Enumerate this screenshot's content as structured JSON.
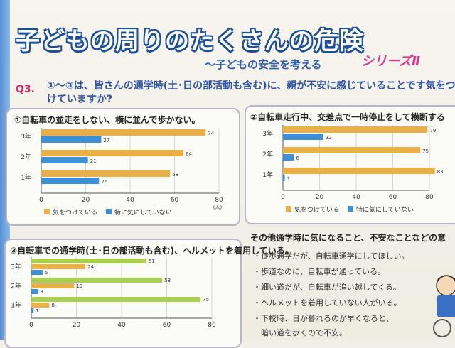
{
  "header": {
    "title": "子どもの周りのたくさんの危険",
    "subtitle": "〜子どもの安全を考える",
    "series": "シリーズⅡ"
  },
  "question": {
    "number": "Q3.",
    "text": "①〜③は、皆さんの通学時(土･日の部活動も含む)に、親が不安に感じていることです気をつけていますか?"
  },
  "chart_data": [
    {
      "type": "bar",
      "title": "①自転車の並走をしない、横に並んで歩かない。",
      "categories": [
        "3年",
        "2年",
        "1年"
      ],
      "series": [
        {
          "name": "気をつけている",
          "values": [
            74,
            64,
            58
          ],
          "color": "#e8b047"
        },
        {
          "name": "特に気にしていない",
          "values": [
            27,
            21,
            26
          ],
          "color": "#3d8fd6"
        }
      ],
      "xlim": [
        0,
        80
      ],
      "ticks": [
        0,
        20,
        40,
        60,
        80
      ],
      "unit": "(人)",
      "legend": "bottom"
    },
    {
      "type": "bar",
      "title": "②自転車走行中、交差点で一時停止をして横断する",
      "categories": [
        "3年",
        "2年",
        "1年"
      ],
      "series": [
        {
          "name": "気をつけている",
          "values": [
            79,
            75,
            83
          ],
          "color": "#e8b047"
        },
        {
          "name": "特に気にしていない",
          "values": [
            22,
            6,
            1
          ],
          "color": "#3d8fd6"
        }
      ],
      "xlim": [
        0,
        80
      ],
      "ticks": [
        0,
        20,
        40,
        60,
        80
      ],
      "legend": "bottom"
    },
    {
      "type": "bar",
      "title": "③自転車での通学時(土･日の部活動も含む)、ヘルメットを着用している。",
      "categories": [
        "3年",
        "2年",
        "1年"
      ],
      "series": [
        {
          "name": "",
          "values": [
            51,
            58,
            75
          ],
          "color": "#a8cf52"
        },
        {
          "name": "",
          "values": [
            24,
            19,
            8
          ],
          "color": "#e8b047"
        },
        {
          "name": "",
          "values": [
            5,
            3,
            1
          ],
          "color": "#3d8fd6"
        }
      ],
      "xlim": [
        0,
        80
      ],
      "ticks": [
        0,
        20,
        40,
        60,
        80
      ]
    }
  ],
  "other": {
    "title": "その他通学時に気になること、不安なことなどの意",
    "items": [
      "・徒歩通学だが、自転車通学にしてほしい。",
      "・歩道なのに、自転車が通っている。",
      "・細い道だが、自転車が追い越してくる。",
      "・ヘルメットを着用していない人がいる。",
      "・下校時、日が暮れるのが早くなると、",
      "　暗い道を歩くので不安。"
    ]
  }
}
